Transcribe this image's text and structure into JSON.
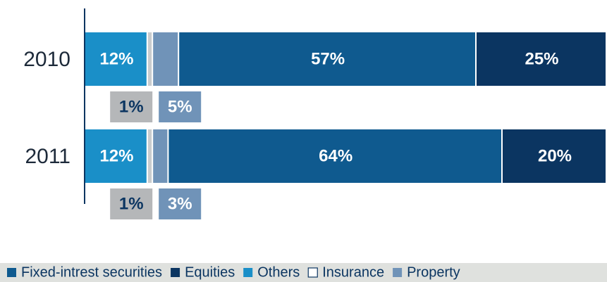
{
  "chart_data": {
    "type": "stacked_bar_horizontal",
    "categories": [
      "2010",
      "2011"
    ],
    "xlim": [
      0,
      100
    ],
    "series": [
      {
        "name": "Others",
        "color": "#1a8fc8",
        "values": [
          12,
          12
        ],
        "value_labels": [
          "12%",
          "12%"
        ]
      },
      {
        "name": "Insurance",
        "color": "#c9ccce",
        "values": [
          1,
          1
        ],
        "value_labels": [
          "1%",
          "1%"
        ],
        "label_position": "below",
        "label_fill": "#b5b7b9",
        "label_text_color": "#0b3561",
        "legend_marker": "outline"
      },
      {
        "name": "Property",
        "color": "#7093b8",
        "values": [
          5,
          3
        ],
        "value_labels": [
          "5%",
          "3%"
        ],
        "label_position": "below"
      },
      {
        "name": "Fixed-intrest securities",
        "color": "#0f5a8f",
        "values": [
          57,
          64
        ],
        "value_labels": [
          "57%",
          "64%"
        ]
      },
      {
        "name": "Equities",
        "color": "#0b3561",
        "values": [
          25,
          20
        ],
        "value_labels": [
          "25%",
          "20%"
        ]
      }
    ],
    "legend_order": [
      3,
      4,
      0,
      1,
      2
    ],
    "legend_position": "bottom"
  }
}
